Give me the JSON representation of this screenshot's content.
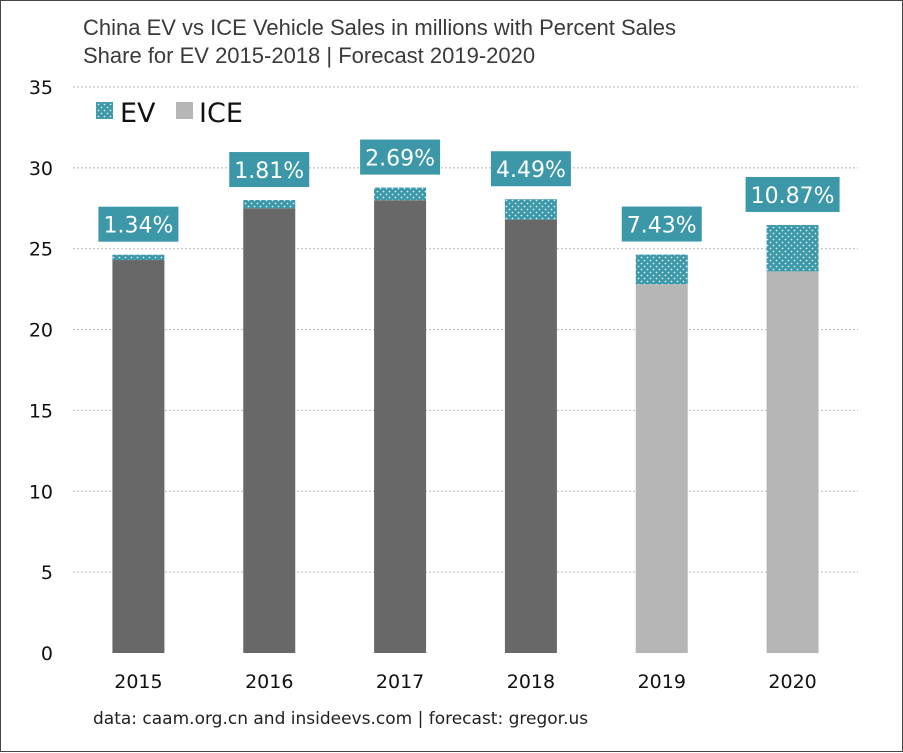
{
  "chart_data": {
    "type": "bar",
    "stacked": true,
    "title_lines": [
      "China EV vs ICE Vehicle Sales in millions with Percent Sales",
      "Share for EV 2015-2018 | Forecast 2019-2020"
    ],
    "categories": [
      "2015",
      "2016",
      "2017",
      "2018",
      "2019",
      "2020"
    ],
    "forecast_categories": [
      "2019",
      "2020"
    ],
    "series": [
      {
        "name": "ICE",
        "values": [
          24.3,
          27.5,
          28.0,
          26.8,
          22.8,
          23.6
        ]
      },
      {
        "name": "EV",
        "values": [
          0.33,
          0.51,
          0.78,
          1.26,
          1.84,
          2.87
        ]
      }
    ],
    "bar_labels": [
      "1.34%",
      "1.81%",
      "2.69%",
      "4.49%",
      "7.43%",
      "10.87%"
    ],
    "ylim": [
      0,
      35
    ],
    "yticks": [
      "0",
      "5",
      "10",
      "15",
      "20",
      "25",
      "30",
      "35"
    ],
    "grid": true,
    "legend": "top-left",
    "source_note": "data: caam.org.cn and insideevs.com | forecast: gregor.us"
  },
  "colors": {
    "ice_actual": "#686868",
    "ice_forecast": "#b6b6b6",
    "ev": "#3c98a8",
    "ev_dots": "#d8eef2",
    "label_bg": "#3c98a8",
    "grid": "#b8b8b8"
  }
}
